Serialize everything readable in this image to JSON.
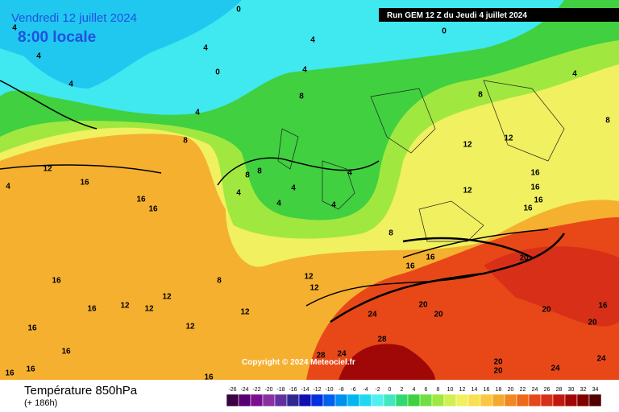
{
  "header": {
    "title": "Vendredi 12 juillet 2024",
    "time": "8:00 locale",
    "run": "Run GEM 12 Z du Jeudi 4 juillet 2024",
    "copyright": "Copyright © 2024 Meteociel.fr"
  },
  "footer": {
    "parameter": "Température 850hPa",
    "lead": "(+ 186h)"
  },
  "scale": {
    "values": [
      -26,
      -24,
      -22,
      -20,
      -18,
      -16,
      -14,
      -12,
      -10,
      -8,
      -6,
      -4,
      -2,
      0,
      2,
      4,
      6,
      8,
      10,
      12,
      14,
      16,
      18,
      20,
      22,
      24,
      26,
      28,
      30,
      32,
      34
    ],
    "colors": [
      "#3a0040",
      "#5a0070",
      "#7a1090",
      "#8a30a0",
      "#6030a0",
      "#302890",
      "#1010b0",
      "#0030e0",
      "#0060f0",
      "#0090f0",
      "#00b8f0",
      "#20d8f0",
      "#50f0f0",
      "#40e8c0",
      "#30d870",
      "#40d040",
      "#70e040",
      "#a0e840",
      "#d0f050",
      "#f0f060",
      "#f8e050",
      "#f8c840",
      "#f5a830",
      "#f08820",
      "#ee6818",
      "#e84818",
      "#d83018",
      "#c01810",
      "#a00808",
      "#800000",
      "#500000"
    ]
  },
  "contour_labels": [
    4,
    0,
    4,
    4,
    4,
    0,
    4,
    0,
    4,
    4,
    8,
    4,
    4,
    8,
    8,
    8,
    8,
    12,
    12,
    12,
    16,
    16,
    16,
    16,
    16,
    16,
    12,
    16,
    4,
    8,
    8,
    4,
    4,
    4,
    4,
    8,
    12,
    12,
    16,
    16,
    16,
    20,
    20,
    20,
    24,
    28,
    28,
    24,
    20,
    20,
    24,
    24,
    20,
    20,
    16,
    16,
    16,
    12,
    12,
    12,
    12,
    16,
    16,
    16,
    16,
    12
  ]
}
